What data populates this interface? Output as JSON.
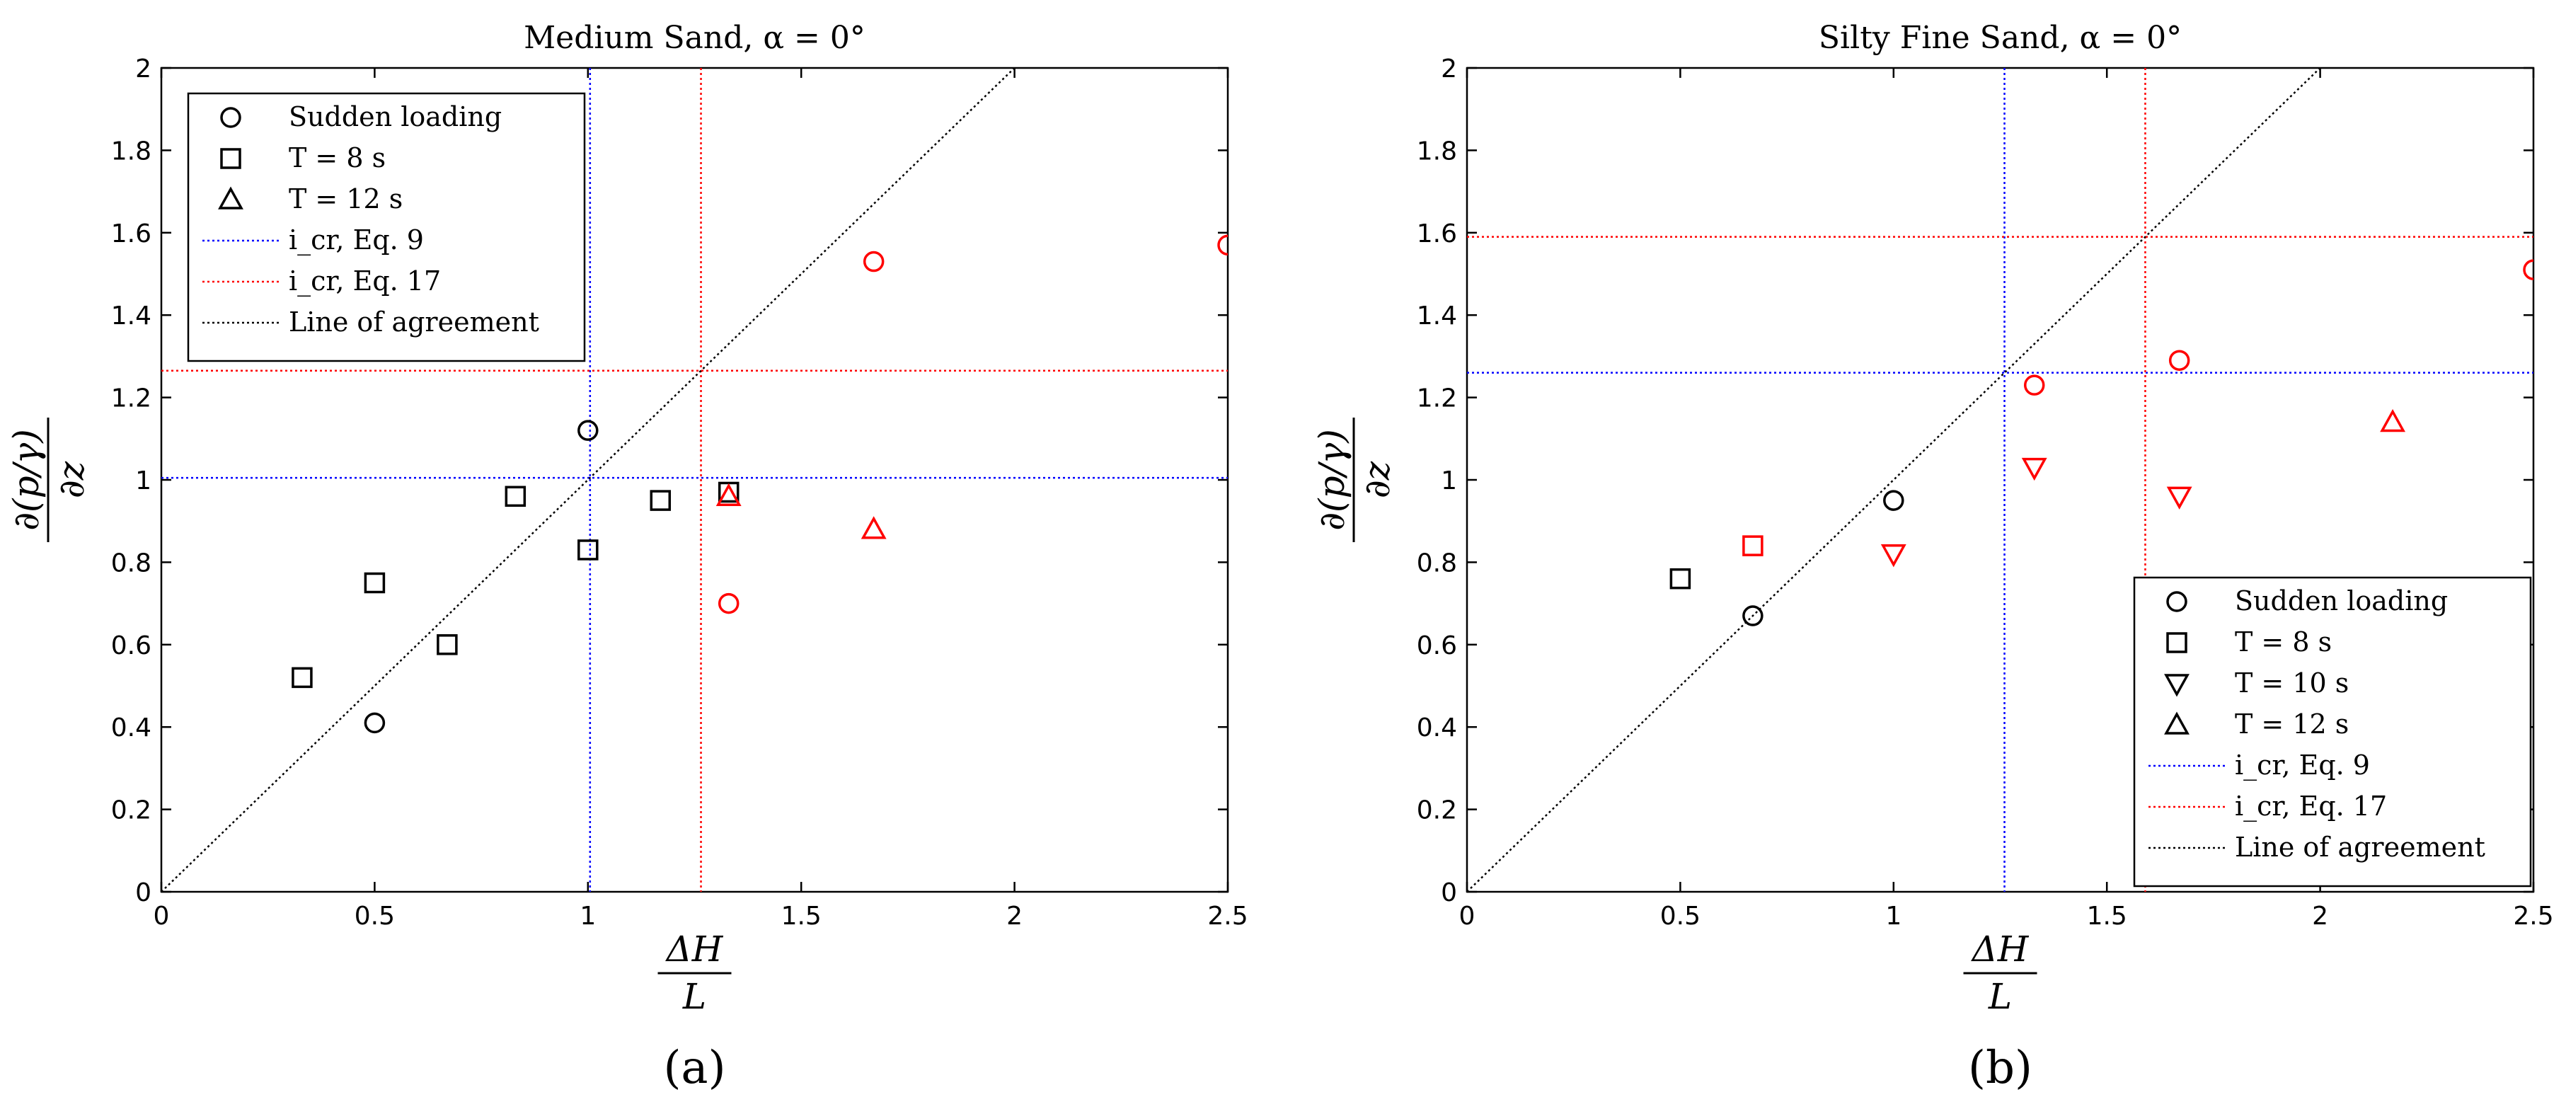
{
  "chart_data": [
    {
      "type": "scatter",
      "panel_label": "(a)",
      "title": "Medium Sand, α = 0°",
      "xlabel": "ΔH/L",
      "ylabel": "∂(p/γ)/∂z",
      "xlim": [
        0,
        2.5
      ],
      "ylim": [
        0,
        2
      ],
      "xticks": [
        "0",
        "0.5",
        "1",
        "1.5",
        "2",
        "2.5"
      ],
      "yticks": [
        "0",
        "0.2",
        "0.4",
        "0.6",
        "0.8",
        "1",
        "1.2",
        "1.4",
        "1.6",
        "1.8",
        "2"
      ],
      "grid": false,
      "legend_position": "top-left",
      "colors": {
        "black": "#000000",
        "red": "#ff0000",
        "blue": "#0000ff"
      },
      "series": [
        {
          "name": "Sudden loading",
          "marker": "circle",
          "points": [
            {
              "x": 0.5,
              "y": 0.41,
              "color": "black"
            },
            {
              "x": 1.0,
              "y": 1.12,
              "color": "black"
            },
            {
              "x": 1.33,
              "y": 0.7,
              "color": "red"
            },
            {
              "x": 1.67,
              "y": 1.53,
              "color": "red"
            },
            {
              "x": 2.5,
              "y": 1.57,
              "color": "red"
            }
          ]
        },
        {
          "name": "T = 8 s",
          "marker": "square",
          "points": [
            {
              "x": 0.33,
              "y": 0.52,
              "color": "black"
            },
            {
              "x": 0.5,
              "y": 0.75,
              "color": "black"
            },
            {
              "x": 0.67,
              "y": 0.6,
              "color": "black"
            },
            {
              "x": 0.83,
              "y": 0.96,
              "color": "black"
            },
            {
              "x": 1.0,
              "y": 0.83,
              "color": "black"
            },
            {
              "x": 1.17,
              "y": 0.95,
              "color": "black"
            },
            {
              "x": 1.33,
              "y": 0.97,
              "color": "black"
            }
          ]
        },
        {
          "name": "T = 12 s",
          "marker": "triangle-up",
          "points": [
            {
              "x": 1.33,
              "y": 0.96,
              "color": "red"
            },
            {
              "x": 1.67,
              "y": 0.88,
              "color": "red"
            }
          ]
        }
      ],
      "reference_lines": [
        {
          "name": "i_cr, Eq. 9",
          "style": "dotted",
          "color": "blue",
          "value": 1.005
        },
        {
          "name": "i_cr, Eq. 17",
          "style": "dotted",
          "color": "red",
          "value": 1.265
        },
        {
          "name": "Line of agreement",
          "style": "dotted",
          "color": "black"
        }
      ]
    },
    {
      "type": "scatter",
      "panel_label": "(b)",
      "title": "Silty Fine Sand, α = 0°",
      "xlabel": "ΔH/L",
      "ylabel": "∂(p/γ)/∂z",
      "xlim": [
        0,
        2.5
      ],
      "ylim": [
        0,
        2
      ],
      "xticks": [
        "0",
        "0.5",
        "1",
        "1.5",
        "2",
        "2.5"
      ],
      "yticks": [
        "0",
        "0.2",
        "0.4",
        "0.6",
        "0.8",
        "1",
        "1.2",
        "1.4",
        "1.6",
        "1.8",
        "2"
      ],
      "grid": false,
      "legend_position": "bottom-right",
      "colors": {
        "black": "#000000",
        "red": "#ff0000",
        "blue": "#0000ff"
      },
      "series": [
        {
          "name": "Sudden loading",
          "marker": "circle",
          "points": [
            {
              "x": 0.67,
              "y": 0.67,
              "color": "black"
            },
            {
              "x": 1.0,
              "y": 0.95,
              "color": "black"
            },
            {
              "x": 1.33,
              "y": 1.23,
              "color": "red"
            },
            {
              "x": 1.67,
              "y": 1.29,
              "color": "red"
            },
            {
              "x": 2.5,
              "y": 1.51,
              "color": "red"
            }
          ]
        },
        {
          "name": "T = 8 s",
          "marker": "square",
          "points": [
            {
              "x": 0.5,
              "y": 0.76,
              "color": "black"
            },
            {
              "x": 0.67,
              "y": 0.84,
              "color": "red"
            }
          ]
        },
        {
          "name": "T = 10 s",
          "marker": "triangle-down",
          "points": [
            {
              "x": 1.0,
              "y": 0.82,
              "color": "red"
            },
            {
              "x": 1.33,
              "y": 1.03,
              "color": "red"
            },
            {
              "x": 1.67,
              "y": 0.96,
              "color": "red"
            }
          ]
        },
        {
          "name": "T = 12 s",
          "marker": "triangle-up",
          "points": [
            {
              "x": 2.17,
              "y": 1.14,
              "color": "red"
            }
          ]
        }
      ],
      "reference_lines": [
        {
          "name": "i_cr, Eq. 9",
          "style": "dotted",
          "color": "blue",
          "value": 1.26
        },
        {
          "name": "i_cr, Eq. 17",
          "style": "dotted",
          "color": "red",
          "value": 1.59
        },
        {
          "name": "Line of agreement",
          "style": "dotted",
          "color": "black"
        }
      ]
    }
  ]
}
